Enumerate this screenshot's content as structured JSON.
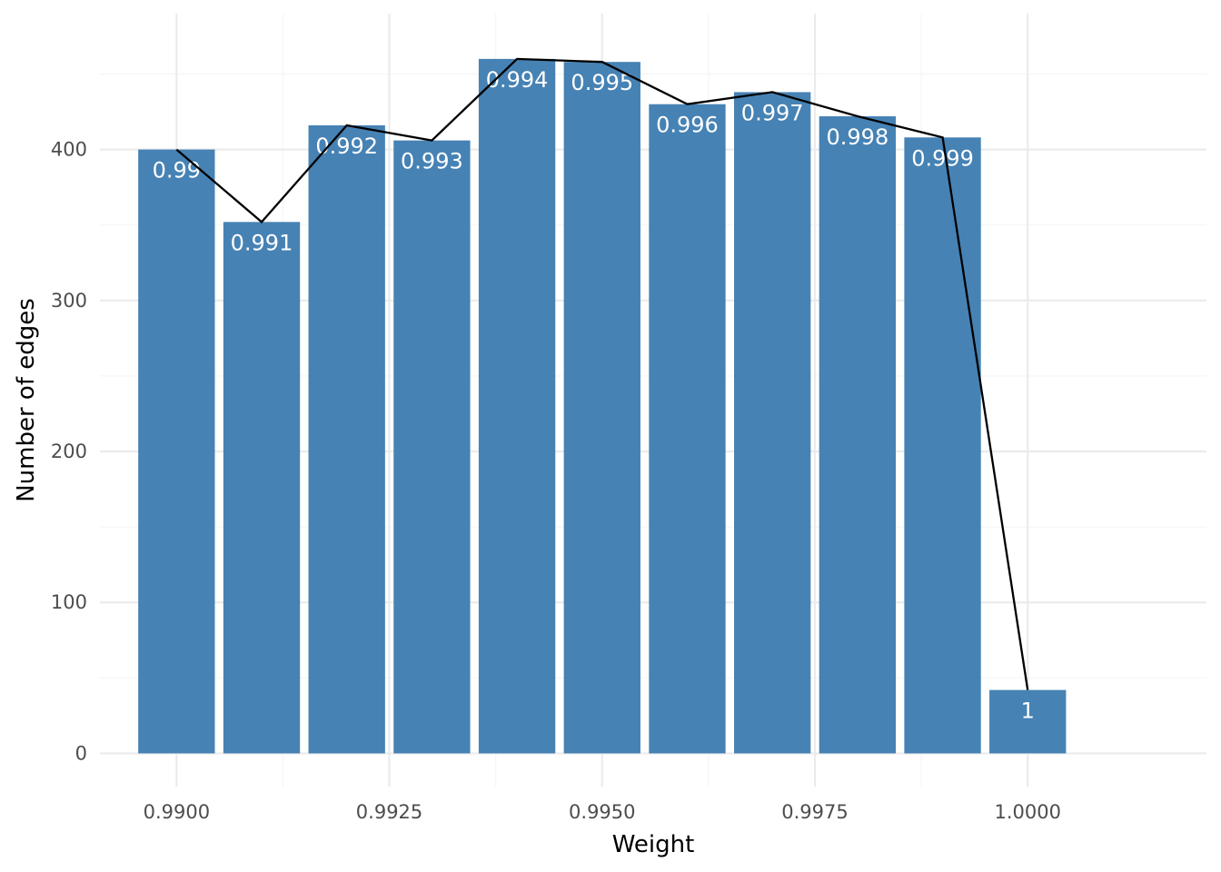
{
  "chart_data": {
    "type": "bar",
    "x": [
      0.99,
      0.991,
      0.992,
      0.993,
      0.994,
      0.995,
      0.996,
      0.997,
      0.998,
      0.999,
      1.0
    ],
    "values": [
      400,
      352,
      416,
      406,
      460,
      458,
      430,
      438,
      422,
      408,
      42
    ],
    "bar_labels": [
      "0.99",
      "0.991",
      "0.992",
      "0.993",
      "0.994",
      "0.995",
      "0.996",
      "0.997",
      "0.998",
      "0.999",
      "1"
    ],
    "overlay_line": true,
    "xlabel": "Weight",
    "ylabel": "Number of edges",
    "xlim": [
      0.9891,
      1.0021
    ],
    "ylim": [
      -22,
      490
    ],
    "x_ticks": [
      0.99,
      0.9925,
      0.995,
      0.9975,
      1.0
    ],
    "x_tick_labels": [
      "0.9900",
      "0.9925",
      "0.9950",
      "0.9975",
      "1.0000"
    ],
    "y_ticks": [
      0,
      100,
      200,
      300,
      400
    ],
    "y_tick_labels": [
      "0",
      "100",
      "200",
      "300",
      "400"
    ],
    "grid": true,
    "colors": {
      "bar": "#4682B4",
      "line": "#000000",
      "grid_major": "#EBEBEB",
      "grid_minor": "#F4F4F4",
      "bar_label": "#FFFFFF",
      "tick_label": "#4D4D4D"
    }
  }
}
